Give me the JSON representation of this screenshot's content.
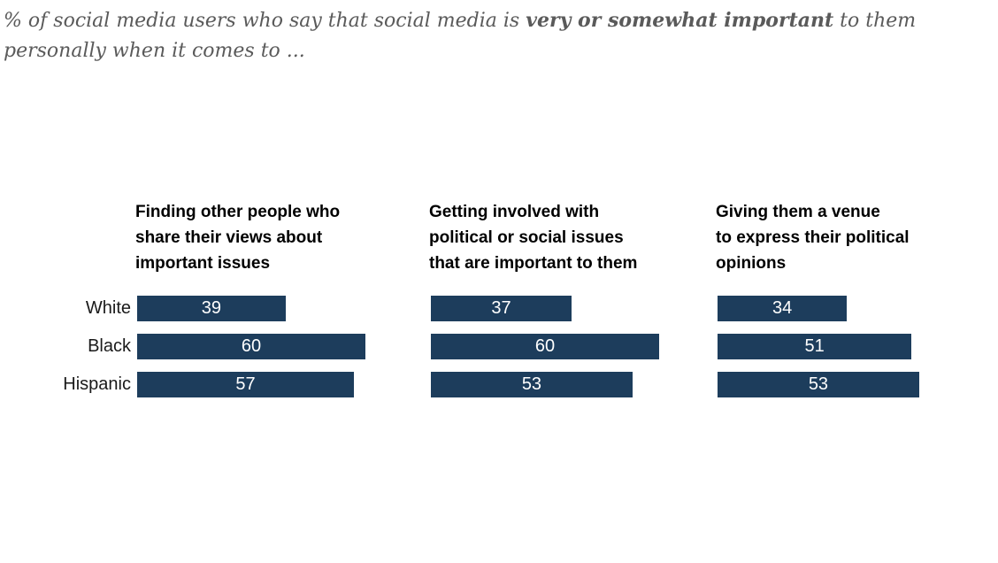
{
  "title": {
    "line1_prefix": "% of social media users who say that social media is ",
    "line1_bold": "very or somewhat important",
    "line1_suffix": " to them",
    "line2": "personally when it comes to ..."
  },
  "colors": {
    "bar": "#1d3d5c",
    "bar_value_text": "#ffffff",
    "title_text": "#5a5a5a",
    "header_text": "#000000",
    "category_text": "#1a1a1a"
  },
  "chart_data": {
    "type": "bar",
    "orientation": "horizontal",
    "unit": "percent",
    "xlim": [
      0,
      100
    ],
    "grid": false,
    "legend": false,
    "value_labels": "inside-center-white",
    "categories": [
      "White",
      "Black",
      "Hispanic"
    ],
    "panels": [
      {
        "title": "Finding other people who share their views about important issues",
        "title_lines": [
          "Finding other people who",
          "share their views about",
          "important issues"
        ],
        "values": [
          39,
          60,
          57
        ]
      },
      {
        "title": "Getting involved with political or social issues that are important to them",
        "title_lines": [
          "Getting involved with",
          "political or social issues",
          "that are important to them"
        ],
        "values": [
          37,
          60,
          53
        ]
      },
      {
        "title": "Giving them a venue to express their political opinions",
        "title_lines": [
          "Giving them a venue",
          "to express their political",
          "opinions"
        ],
        "values": [
          34,
          51,
          53
        ]
      }
    ]
  }
}
